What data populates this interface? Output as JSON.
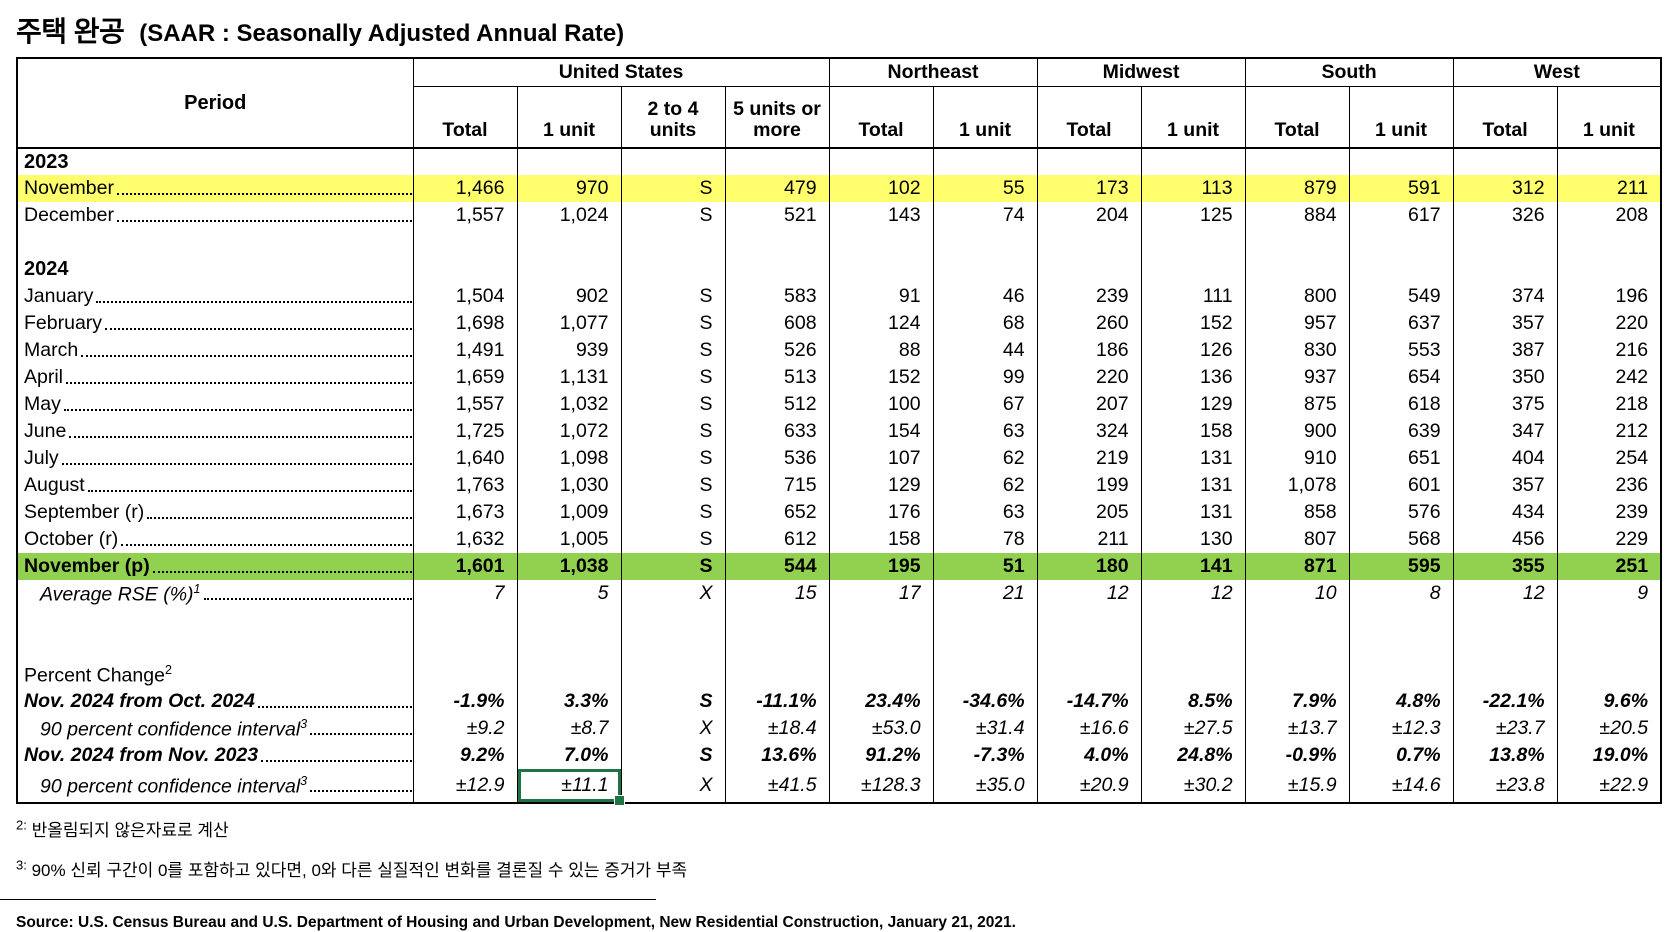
{
  "title": {
    "korean": "주택 완공",
    "subtitle": "(SAAR : Seasonally Adjusted Annual Rate)"
  },
  "table": {
    "period_header": "Period",
    "groups": [
      {
        "label": "United States",
        "columns": [
          "Total",
          "1 unit",
          "2 to 4 units",
          "5 units or more"
        ]
      },
      {
        "label": "Northeast",
        "columns": [
          "Total",
          "1 unit"
        ]
      },
      {
        "label": "Midwest",
        "columns": [
          "Total",
          "1 unit"
        ]
      },
      {
        "label": "South",
        "columns": [
          "Total",
          "1 unit"
        ]
      },
      {
        "label": "West",
        "columns": [
          "Total",
          "1 unit"
        ]
      }
    ],
    "rows": [
      {
        "type": "section",
        "label": "2023"
      },
      {
        "type": "data",
        "label": "November",
        "leaders": true,
        "style": "yellow",
        "values": [
          "1,466",
          "970",
          "S",
          "479",
          "102",
          "55",
          "173",
          "113",
          "879",
          "591",
          "312",
          "211"
        ]
      },
      {
        "type": "data",
        "label": "December",
        "leaders": true,
        "values": [
          "1,557",
          "1,024",
          "S",
          "521",
          "143",
          "74",
          "204",
          "125",
          "884",
          "617",
          "326",
          "208"
        ]
      },
      {
        "type": "blank"
      },
      {
        "type": "section",
        "label": "2024"
      },
      {
        "type": "data",
        "label": "January",
        "leaders": true,
        "values": [
          "1,504",
          "902",
          "S",
          "583",
          "91",
          "46",
          "239",
          "111",
          "800",
          "549",
          "374",
          "196"
        ]
      },
      {
        "type": "data",
        "label": "February",
        "leaders": true,
        "values": [
          "1,698",
          "1,077",
          "S",
          "608",
          "124",
          "68",
          "260",
          "152",
          "957",
          "637",
          "357",
          "220"
        ]
      },
      {
        "type": "data",
        "label": "March",
        "leaders": true,
        "values": [
          "1,491",
          "939",
          "S",
          "526",
          "88",
          "44",
          "186",
          "126",
          "830",
          "553",
          "387",
          "216"
        ]
      },
      {
        "type": "data",
        "label": "April",
        "leaders": true,
        "values": [
          "1,659",
          "1,131",
          "S",
          "513",
          "152",
          "99",
          "220",
          "136",
          "937",
          "654",
          "350",
          "242"
        ]
      },
      {
        "type": "data",
        "label": "May",
        "leaders": true,
        "values": [
          "1,557",
          "1,032",
          "S",
          "512",
          "100",
          "67",
          "207",
          "129",
          "875",
          "618",
          "375",
          "218"
        ]
      },
      {
        "type": "data",
        "label": "June",
        "leaders": true,
        "values": [
          "1,725",
          "1,072",
          "S",
          "633",
          "154",
          "63",
          "324",
          "158",
          "900",
          "639",
          "347",
          "212"
        ]
      },
      {
        "type": "data",
        "label": "July",
        "leaders": true,
        "values": [
          "1,640",
          "1,098",
          "S",
          "536",
          "107",
          "62",
          "219",
          "131",
          "910",
          "651",
          "404",
          "254"
        ]
      },
      {
        "type": "data",
        "label": "August",
        "leaders": true,
        "values": [
          "1,763",
          "1,030",
          "S",
          "715",
          "129",
          "62",
          "199",
          "131",
          "1,078",
          "601",
          "357",
          "236"
        ]
      },
      {
        "type": "data",
        "label": "September (r)",
        "leaders": true,
        "values": [
          "1,673",
          "1,009",
          "S",
          "652",
          "176",
          "63",
          "205",
          "131",
          "858",
          "576",
          "434",
          "239"
        ]
      },
      {
        "type": "data",
        "label": "October (r)",
        "leaders": true,
        "values": [
          "1,632",
          "1,005",
          "S",
          "612",
          "158",
          "78",
          "211",
          "130",
          "807",
          "568",
          "456",
          "229"
        ]
      },
      {
        "type": "data",
        "label": "November (p)",
        "leaders": true,
        "style": "green",
        "values": [
          "1,601",
          "1,038",
          "S",
          "544",
          "195",
          "51",
          "180",
          "141",
          "871",
          "595",
          "355",
          "251"
        ]
      },
      {
        "type": "data",
        "label": "Average RSE (%)",
        "sup": "1",
        "leaders": true,
        "style": "rse",
        "indent": true,
        "values": [
          "7",
          "5",
          "X",
          "15",
          "17",
          "21",
          "12",
          "12",
          "10",
          "8",
          "12",
          "9"
        ]
      },
      {
        "type": "blank"
      },
      {
        "type": "blank"
      },
      {
        "type": "label",
        "label": "Percent Change",
        "sup": "2"
      },
      {
        "type": "data",
        "label": "Nov. 2024 from Oct. 2024",
        "leaders": true,
        "style": "pc",
        "values": [
          "-1.9%",
          "3.3%",
          "S",
          "-11.1%",
          "23.4%",
          "-34.6%",
          "-14.7%",
          "8.5%",
          "7.9%",
          "4.8%",
          "-22.1%",
          "9.6%"
        ]
      },
      {
        "type": "data",
        "label": "90 percent confidence interval",
        "sup": "3",
        "leaders": true,
        "style": "ci",
        "indent": true,
        "values": [
          "±9.2",
          "±8.7",
          "X",
          "±18.4",
          "±53.0",
          "±31.4",
          "±16.6",
          "±27.5",
          "±13.7",
          "±12.3",
          "±23.7",
          "±20.5"
        ]
      },
      {
        "type": "data",
        "label": "Nov. 2024 from Nov. 2023",
        "leaders": true,
        "style": "pc",
        "values": [
          "9.2%",
          "7.0%",
          "S",
          "13.6%",
          "91.2%",
          "-7.3%",
          "4.0%",
          "24.8%",
          "-0.9%",
          "0.7%",
          "13.8%",
          "19.0%"
        ]
      },
      {
        "type": "data",
        "label": "90 percent confidence interval",
        "sup": "3",
        "leaders": true,
        "style": "ci",
        "indent": true,
        "selected_col": 1,
        "values": [
          "±12.9",
          "±11.1",
          "X",
          "±41.5",
          "±128.3",
          "±35.0",
          "±20.9",
          "±30.2",
          "±15.9",
          "±14.6",
          "±23.8",
          "±22.9"
        ]
      }
    ]
  },
  "footnotes": {
    "f2_marker": "2:",
    "f2_text": "반올림되지 않은자료로 계산",
    "f3_marker": "3:",
    "f3_text": "90% 신뢰 구간이 0를 포함하고 있다면, 0와 다른 실질적인 변화를 결론질 수 있는 증거가 부족"
  },
  "source": "Source: U.S. Census Bureau and U.S. Department of Housing and Urban Development, New Residential Construction, January 21, 2021.",
  "colors": {
    "highlight_yellow": "#FFFF6E",
    "highlight_green": "#92D050",
    "selection_border": "#217346"
  }
}
